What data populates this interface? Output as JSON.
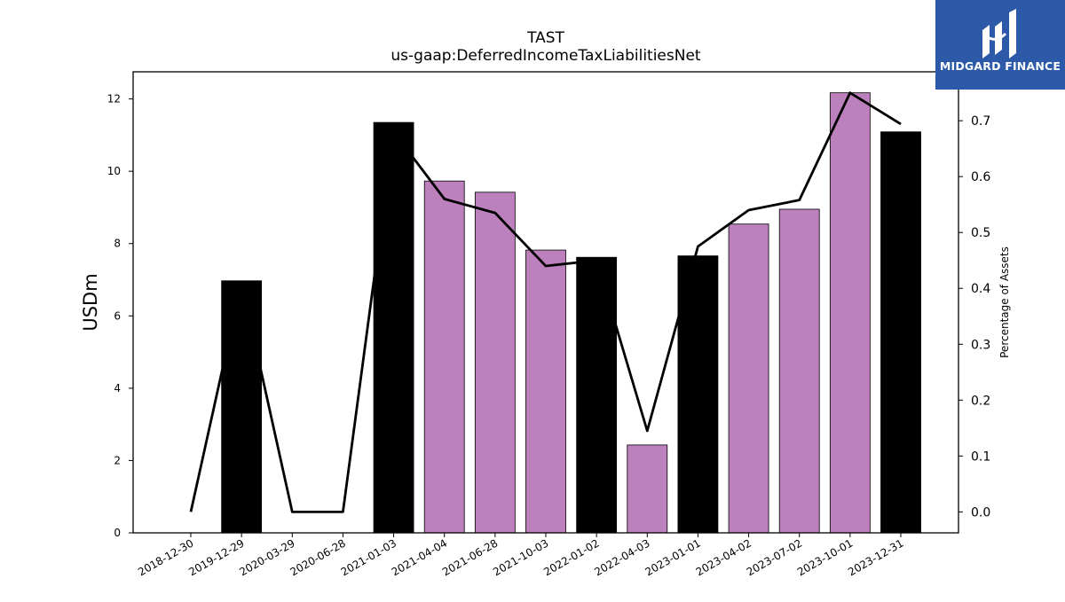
{
  "chart_data": {
    "type": "bar+line",
    "title": "TAST",
    "subtitle": "us-gaap:DeferredIncomeTaxLiabilitiesNet",
    "ylabel_left": "USDm",
    "ylabel_right": "Percentage of Assets",
    "categories": [
      "2018-12-30",
      "2019-12-29",
      "2020-03-29",
      "2020-06-28",
      "2021-01-03",
      "2021-04-04",
      "2021-06-28",
      "2021-10-03",
      "2022-01-02",
      "2022-04-03",
      "2023-01-01",
      "2023-04-02",
      "2023-07-02",
      "2023-10-01",
      "2023-12-31"
    ],
    "bar_values": [
      0,
      6.97,
      0,
      0,
      11.35,
      9.73,
      9.42,
      7.82,
      7.62,
      2.43,
      7.66,
      8.54,
      8.95,
      12.17,
      11.09
    ],
    "bar_colors": [
      "#000000",
      "#000000",
      "#000000",
      "#000000",
      "#000000",
      "#bc80bd",
      "#bc80bd",
      "#bc80bd",
      "#000000",
      "#bc80bd",
      "#000000",
      "#bc80bd",
      "#bc80bd",
      "#bc80bd",
      "#000000"
    ],
    "line_values": [
      0.0,
      0.41,
      0.0,
      0.0,
      0.68,
      0.56,
      0.535,
      0.44,
      0.45,
      0.145,
      0.475,
      0.54,
      0.558,
      0.75,
      0.694
    ],
    "ylim_left": [
      0,
      12.75
    ],
    "yticks_left": [
      0,
      2,
      4,
      6,
      8,
      10,
      12
    ],
    "ylim_right": [
      -0.0375,
      0.7875
    ],
    "yticks_right": [
      "0.0",
      "0.1",
      "0.2",
      "0.3",
      "0.4",
      "0.5",
      "0.6",
      "0.7"
    ],
    "grid": false,
    "legend": "none"
  },
  "brand": {
    "name": "MIDGARD FINANCE",
    "icon": "midgard-logo-icon",
    "color": "#2d5aa8"
  }
}
